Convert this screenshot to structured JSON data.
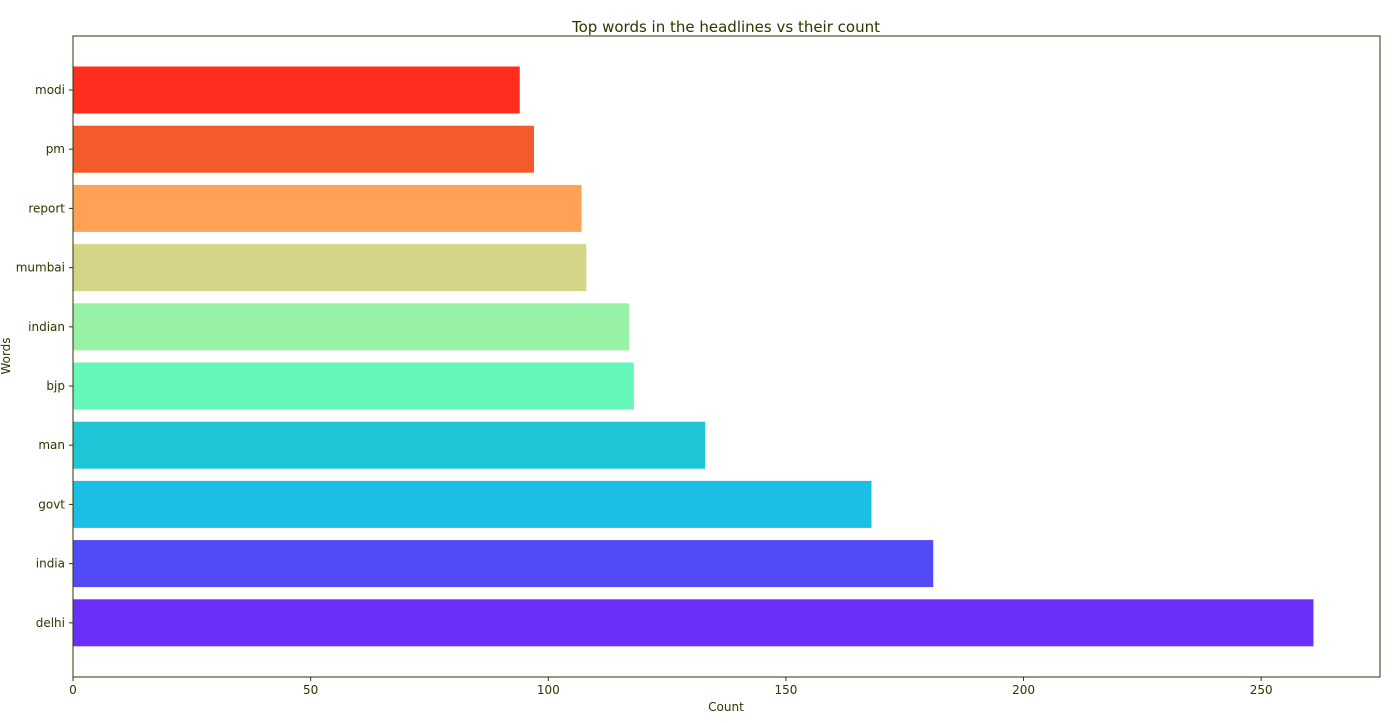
{
  "chart_data": {
    "type": "bar",
    "orientation": "horizontal",
    "title": "Top words in the headlines vs their count",
    "xlabel": "Count",
    "ylabel": "Words",
    "xlim": [
      0,
      275
    ],
    "xticks": [
      0,
      50,
      100,
      150,
      200,
      250
    ],
    "grid": false,
    "categories": [
      "modi",
      "pm",
      "report",
      "mumbai",
      "indian",
      "bjp",
      "man",
      "govt",
      "india",
      "delhi"
    ],
    "values": [
      94,
      97,
      107,
      108,
      117,
      118,
      133,
      168,
      181,
      261
    ],
    "colors": [
      "#ff2d1e",
      "#f35b2c",
      "#ffa256",
      "#d4d486",
      "#98f2a6",
      "#64f7b8",
      "#1fc4d6",
      "#1bbfe6",
      "#5249f7",
      "#6a2ffa"
    ]
  }
}
